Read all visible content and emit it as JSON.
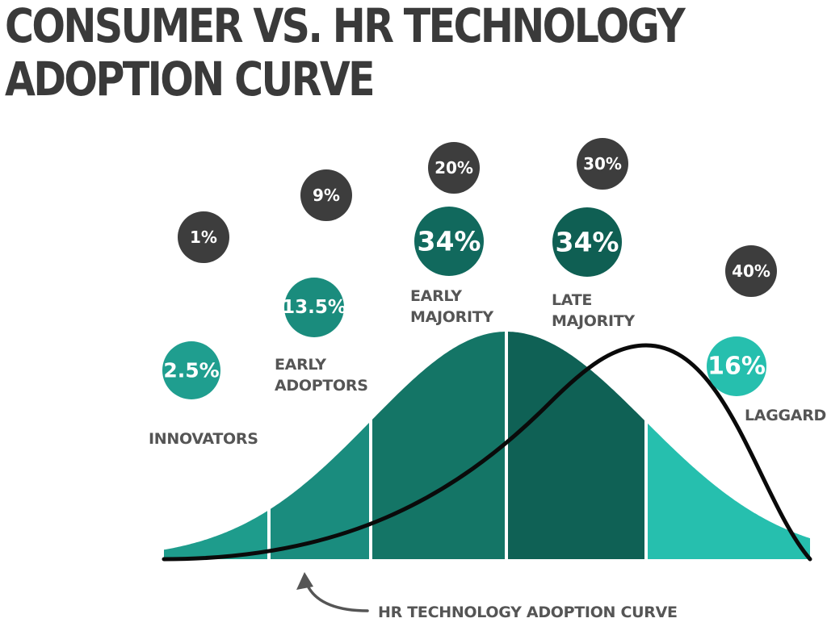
{
  "title_lines": [
    "CONSUMER VS. HR TECHNOLOGY",
    "ADOPTION CURVE"
  ],
  "colors": {
    "title": "#3a3a3a",
    "label": "#555555",
    "hr_bubble": "#3d3d3d",
    "hr_curve": "#0a0a0a",
    "segments": [
      "#1e9c8c",
      "#1a8c7e",
      "#147566",
      "#0f6155",
      "#26bfae"
    ],
    "bubbles": [
      "#1f9e8f",
      "#1a8c7d",
      "#11695d",
      "#0f5f53",
      "#26bfae"
    ]
  },
  "chart_data": {
    "type": "area",
    "title": "CONSUMER VS. HR TECHNOLOGY ADOPTION CURVE",
    "categories": [
      "INNOVATORS",
      "EARLY ADOPTORS",
      "EARLY MAJORITY",
      "LATE MAJORITY",
      "LAGGARDS"
    ],
    "category_labels": [
      [
        "INNOVATORS"
      ],
      [
        "EARLY",
        "ADOPTORS"
      ],
      [
        "EARLY",
        "MAJORITY"
      ],
      [
        "LATE",
        "MAJORITY"
      ],
      [
        "LAGGARDS"
      ]
    ],
    "series": [
      {
        "values": [
          2.5,
          13.5,
          34,
          34,
          16
        ],
        "labels": [
          "2.5%",
          "13.5%",
          "34%",
          "34%",
          "16%"
        ]
      },
      {
        "name": "HR TECHNOLOGY ADOPTION CURVE",
        "values": [
          1,
          9,
          20,
          30,
          40
        ],
        "labels": [
          "1%",
          "9%",
          "20%",
          "30%",
          "40%"
        ]
      }
    ],
    "annotation": "HR TECHNOLOGY ADOPTION CURVE",
    "grid": false
  }
}
